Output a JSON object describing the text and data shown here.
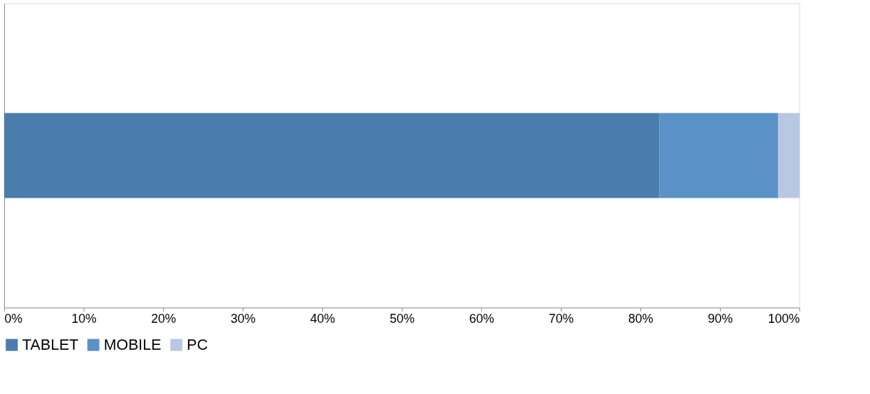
{
  "chart_data": {
    "type": "bar",
    "orientation": "horizontal",
    "stacked": true,
    "categories": [
      null
    ],
    "series": [
      {
        "name": "TABLET",
        "color": "#4a7dac",
        "values": [
          82.4
        ]
      },
      {
        "name": "MOBILE",
        "color": "#5a91c6",
        "values": [
          14.9
        ]
      },
      {
        "name": "PC",
        "color": "#b8c7e2",
        "values": [
          2.7
        ]
      }
    ],
    "xlim": [
      0,
      100
    ],
    "xticks": [
      {
        "value": 0,
        "label": "0%"
      },
      {
        "value": 10,
        "label": "10%"
      },
      {
        "value": 20,
        "label": "20%"
      },
      {
        "value": 30,
        "label": "30%"
      },
      {
        "value": 40,
        "label": "40%"
      },
      {
        "value": 50,
        "label": "50%"
      },
      {
        "value": 60,
        "label": "60%"
      },
      {
        "value": 70,
        "label": "70%"
      },
      {
        "value": 80,
        "label": "80%"
      },
      {
        "value": 90,
        "label": "90%"
      },
      {
        "value": 100,
        "label": "100%"
      }
    ],
    "legend": "bottom",
    "grid": false,
    "tick_labels": "x"
  }
}
